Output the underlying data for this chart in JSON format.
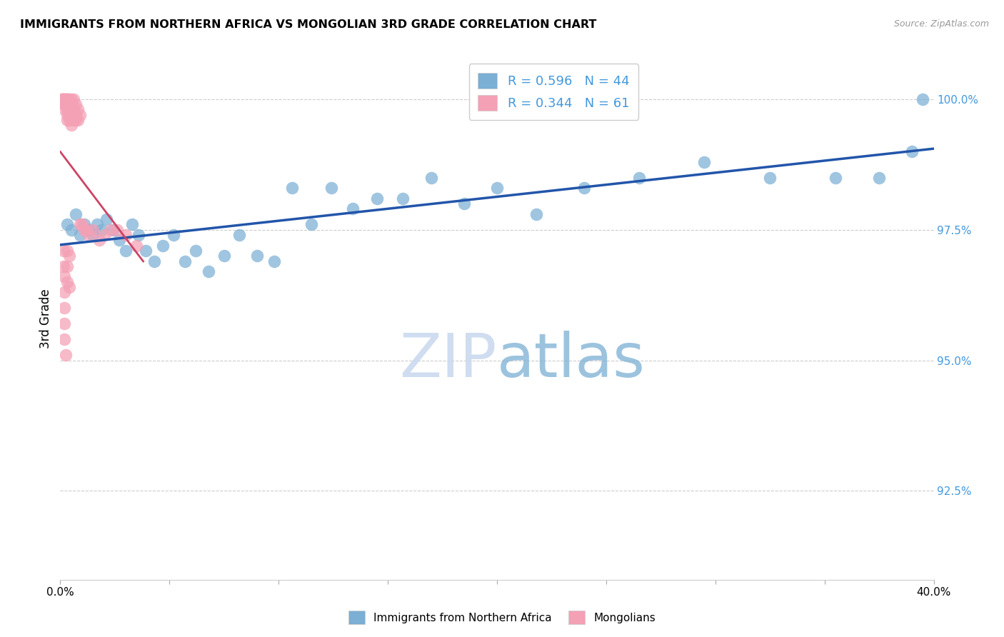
{
  "title": "IMMIGRANTS FROM NORTHERN AFRICA VS MONGOLIAN 3RD GRADE CORRELATION CHART",
  "source": "Source: ZipAtlas.com",
  "ylabel": "3rd Grade",
  "ylabel_right_labels": [
    "100.0%",
    "97.5%",
    "95.0%",
    "92.5%"
  ],
  "ylabel_right_values": [
    1.0,
    0.975,
    0.95,
    0.925
  ],
  "xlim": [
    0.0,
    0.4
  ],
  "ylim": [
    0.908,
    1.008
  ],
  "legend_blue_r": "0.596",
  "legend_blue_n": "44",
  "legend_pink_r": "0.344",
  "legend_pink_n": "61",
  "watermark": "ZIPatlas",
  "blue_color": "#7bafd4",
  "pink_color": "#f4a0b5",
  "blue_line_color": "#2255aa",
  "pink_line_color": "#cc4466",
  "blue_scatter": [
    [
      0.003,
      0.976
    ],
    [
      0.005,
      0.975
    ],
    [
      0.007,
      0.978
    ],
    [
      0.009,
      0.974
    ],
    [
      0.011,
      0.976
    ],
    [
      0.013,
      0.975
    ],
    [
      0.015,
      0.974
    ],
    [
      0.017,
      0.976
    ],
    [
      0.019,
      0.975
    ],
    [
      0.021,
      0.977
    ],
    [
      0.024,
      0.975
    ],
    [
      0.027,
      0.973
    ],
    [
      0.03,
      0.971
    ],
    [
      0.033,
      0.976
    ],
    [
      0.036,
      0.974
    ],
    [
      0.039,
      0.971
    ],
    [
      0.043,
      0.969
    ],
    [
      0.047,
      0.972
    ],
    [
      0.052,
      0.974
    ],
    [
      0.057,
      0.969
    ],
    [
      0.062,
      0.971
    ],
    [
      0.068,
      0.967
    ],
    [
      0.075,
      0.97
    ],
    [
      0.082,
      0.974
    ],
    [
      0.09,
      0.97
    ],
    [
      0.098,
      0.969
    ],
    [
      0.106,
      0.983
    ],
    [
      0.115,
      0.976
    ],
    [
      0.124,
      0.983
    ],
    [
      0.134,
      0.979
    ],
    [
      0.145,
      0.981
    ],
    [
      0.157,
      0.981
    ],
    [
      0.17,
      0.985
    ],
    [
      0.185,
      0.98
    ],
    [
      0.2,
      0.983
    ],
    [
      0.218,
      0.978
    ],
    [
      0.24,
      0.983
    ],
    [
      0.265,
      0.985
    ],
    [
      0.295,
      0.988
    ],
    [
      0.325,
      0.985
    ],
    [
      0.355,
      0.985
    ],
    [
      0.375,
      0.985
    ],
    [
      0.39,
      0.99
    ],
    [
      0.395,
      1.0
    ]
  ],
  "pink_scatter": [
    [
      0.001,
      1.0
    ],
    [
      0.001,
      1.0
    ],
    [
      0.0015,
      1.0
    ],
    [
      0.0015,
      1.0
    ],
    [
      0.002,
      1.0
    ],
    [
      0.002,
      1.0
    ],
    [
      0.002,
      0.999
    ],
    [
      0.002,
      0.999
    ],
    [
      0.002,
      0.998
    ],
    [
      0.0025,
      1.0
    ],
    [
      0.0025,
      0.999
    ],
    [
      0.003,
      1.0
    ],
    [
      0.003,
      1.0
    ],
    [
      0.003,
      0.999
    ],
    [
      0.003,
      0.998
    ],
    [
      0.003,
      0.997
    ],
    [
      0.003,
      0.996
    ],
    [
      0.0035,
      1.0
    ],
    [
      0.004,
      1.0
    ],
    [
      0.004,
      0.999
    ],
    [
      0.004,
      0.998
    ],
    [
      0.004,
      0.997
    ],
    [
      0.004,
      0.996
    ],
    [
      0.005,
      1.0
    ],
    [
      0.005,
      0.999
    ],
    [
      0.005,
      0.997
    ],
    [
      0.005,
      0.995
    ],
    [
      0.006,
      1.0
    ],
    [
      0.006,
      0.998
    ],
    [
      0.006,
      0.996
    ],
    [
      0.007,
      0.999
    ],
    [
      0.007,
      0.997
    ],
    [
      0.007,
      0.996
    ],
    [
      0.008,
      0.998
    ],
    [
      0.008,
      0.996
    ],
    [
      0.009,
      0.997
    ],
    [
      0.009,
      0.976
    ],
    [
      0.01,
      0.976
    ],
    [
      0.011,
      0.975
    ],
    [
      0.012,
      0.975
    ],
    [
      0.013,
      0.974
    ],
    [
      0.015,
      0.975
    ],
    [
      0.018,
      0.973
    ],
    [
      0.02,
      0.974
    ],
    [
      0.023,
      0.975
    ],
    [
      0.026,
      0.975
    ],
    [
      0.03,
      0.974
    ],
    [
      0.035,
      0.972
    ],
    [
      0.0015,
      0.971
    ],
    [
      0.0015,
      0.968
    ],
    [
      0.002,
      0.966
    ],
    [
      0.002,
      0.963
    ],
    [
      0.002,
      0.96
    ],
    [
      0.002,
      0.957
    ],
    [
      0.002,
      0.954
    ],
    [
      0.0025,
      0.951
    ],
    [
      0.003,
      0.971
    ],
    [
      0.003,
      0.968
    ],
    [
      0.003,
      0.965
    ],
    [
      0.004,
      0.97
    ],
    [
      0.004,
      0.964
    ]
  ]
}
